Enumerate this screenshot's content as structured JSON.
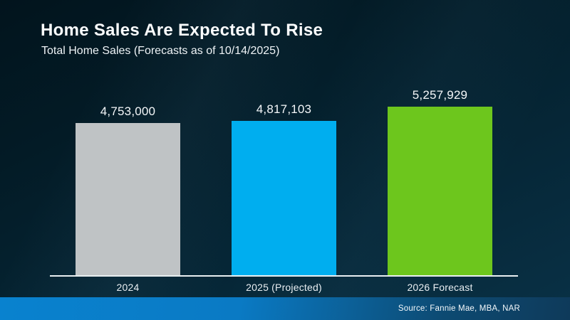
{
  "slide": {
    "title": "Home Sales Are Expected To Rise",
    "subtitle": "Total Home Sales (Forecasts as of 10/14/2025)",
    "source": "Source: Fannie Mae, MBA, NAR"
  },
  "chart_data": {
    "type": "bar",
    "title": "Home Sales Are Expected To Rise",
    "subtitle": "Total Home Sales (Forecasts as of 10/14/2025)",
    "categories": [
      "2024",
      "2025 (Projected)",
      "2026 Forecast"
    ],
    "values": [
      4753000,
      4817103,
      5257929
    ],
    "value_labels": [
      "4,753,000",
      "4,817,103",
      "5,257,929"
    ],
    "bar_colors": [
      "#bfc3c5",
      "#00aeef",
      "#6dc61d"
    ],
    "ylim": [
      0,
      5257929
    ],
    "grid": false,
    "legend": false,
    "baseline_axis_color": "#e9eff1",
    "source_note": "Source: Fannie Mae, MBA, NAR"
  },
  "colors": {
    "background_top": "#02141d",
    "background_bottom": "#093146",
    "footer_gradient_left": "#0982cf",
    "footer_gradient_right": "#0e3a5a",
    "text": "#ffffff"
  }
}
